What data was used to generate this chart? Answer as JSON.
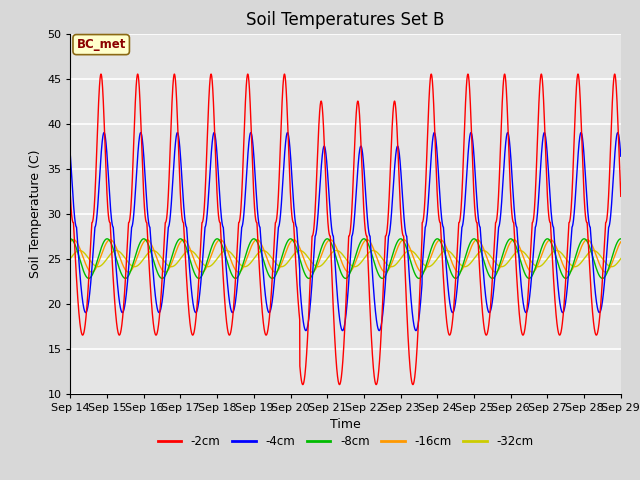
{
  "title": "Soil Temperatures Set B",
  "xlabel": "Time",
  "ylabel": "Soil Temperature (C)",
  "ylim": [
    10,
    50
  ],
  "xlim": [
    0,
    360
  ],
  "annotation": "BC_met",
  "series_labels": [
    "-2cm",
    "-4cm",
    "-8cm",
    "-16cm",
    "-32cm"
  ],
  "series_colors": [
    "#ff0000",
    "#0000ff",
    "#00bb00",
    "#ff9900",
    "#cccc00"
  ],
  "xtick_labels": [
    "Sep 14",
    "Sep 15",
    "Sep 16",
    "Sep 17",
    "Sep 18",
    "Sep 19",
    "Sep 20",
    "Sep 21",
    "Sep 22",
    "Sep 23",
    "Sep 24",
    "Sep 25",
    "Sep 26",
    "Sep 27",
    "Sep 28",
    "Sep 29"
  ],
  "xtick_positions": [
    0,
    24,
    48,
    72,
    96,
    120,
    144,
    168,
    192,
    216,
    240,
    264,
    288,
    312,
    336,
    360
  ],
  "ytick_positions": [
    10,
    15,
    20,
    25,
    30,
    35,
    40,
    45,
    50
  ],
  "background_color": "#e5e5e5",
  "grid_color": "#ffffff",
  "title_fontsize": 12,
  "axis_label_fontsize": 9
}
